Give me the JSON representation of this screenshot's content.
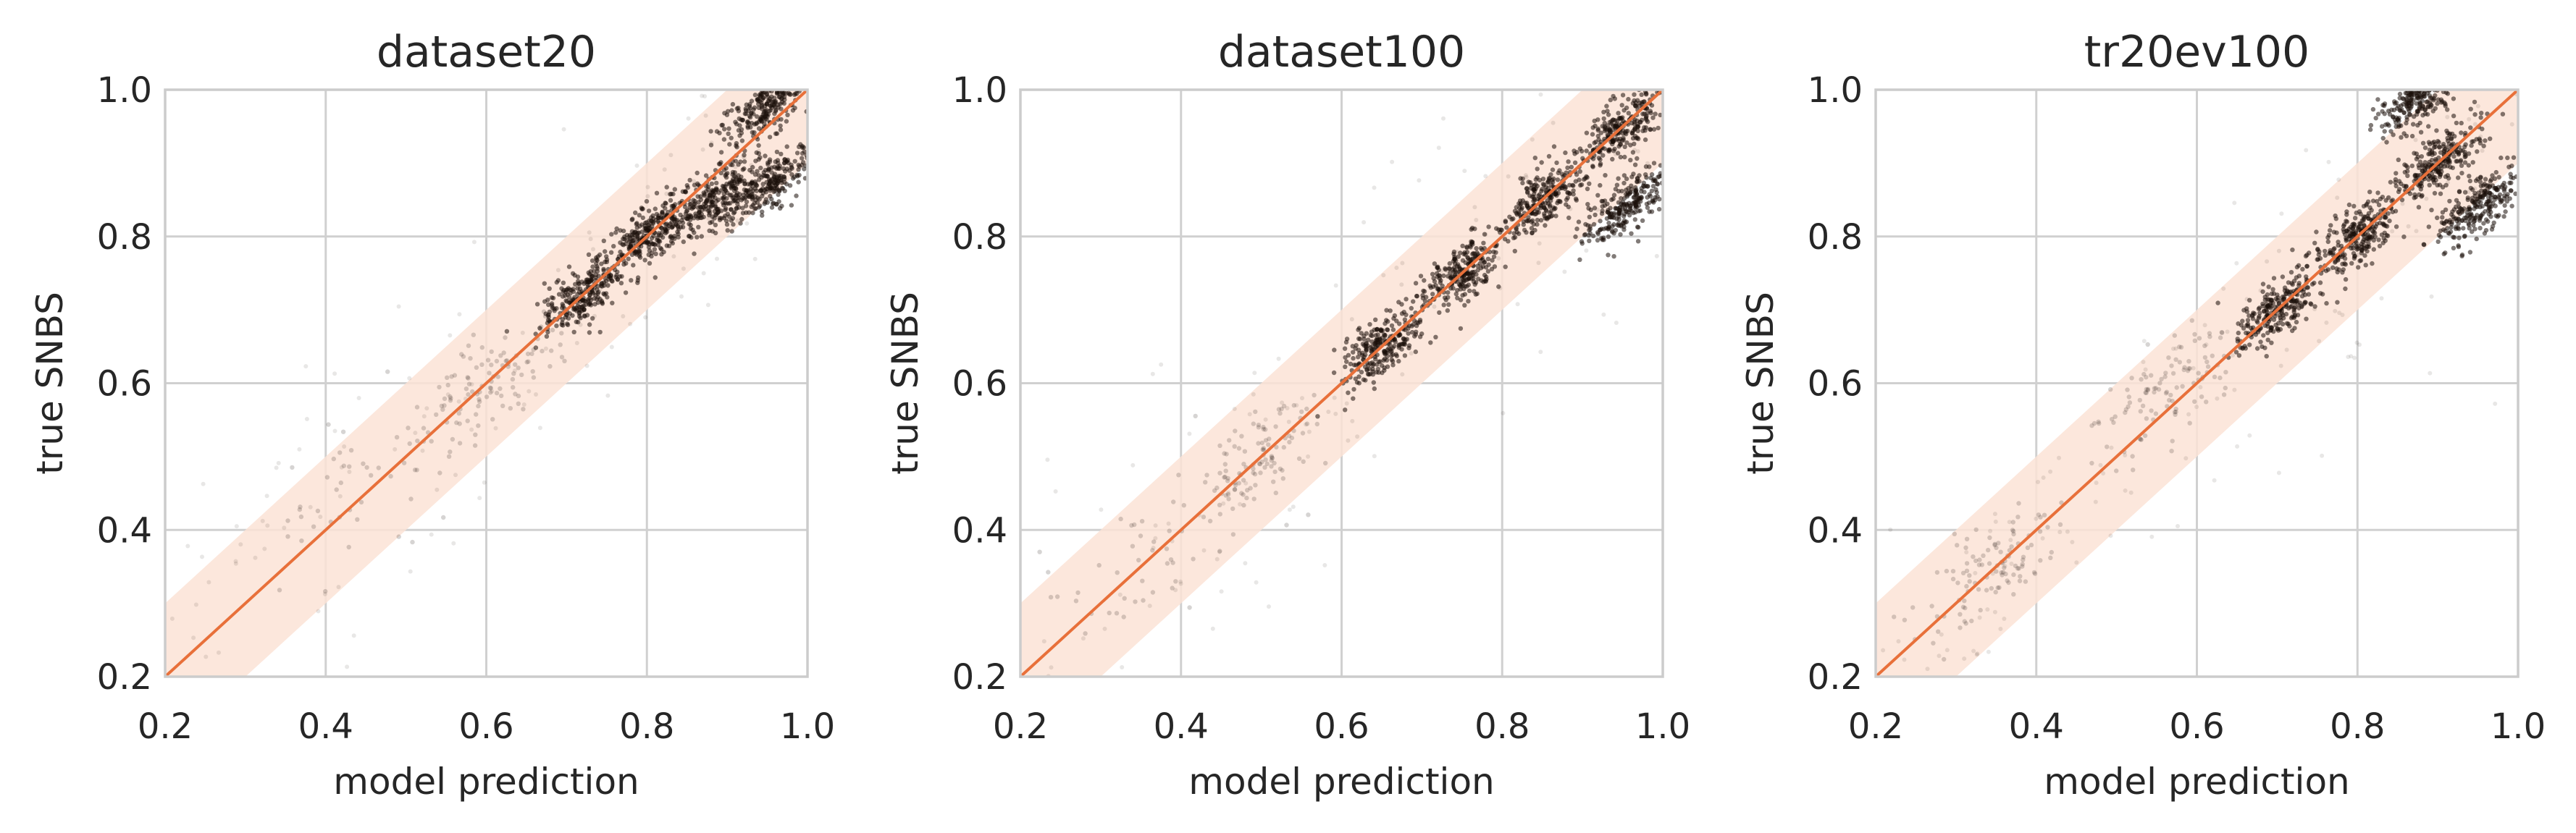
{
  "chart_data": [
    {
      "type": "scatter",
      "title": "dataset20",
      "xlabel": "model prediction",
      "ylabel": "true SNBS",
      "xlim": [
        0.2,
        1.0
      ],
      "ylim": [
        0.2,
        1.0
      ],
      "xticks": [
        "0.2",
        "0.4",
        "0.6",
        "0.8",
        "1.0"
      ],
      "yticks": [
        "0.2",
        "0.4",
        "0.6",
        "0.8",
        "1.0"
      ],
      "grid": true,
      "reference_line": {
        "x": [
          0.2,
          1.0
        ],
        "y": [
          0.2,
          1.0
        ]
      },
      "tolerance_band": 0.1,
      "point_density": [
        {
          "x": 0.72,
          "y": 0.72,
          "level": "dense"
        },
        {
          "x": 0.8,
          "y": 0.8,
          "level": "dense"
        },
        {
          "x": 0.88,
          "y": 0.85,
          "level": "dense"
        },
        {
          "x": 0.95,
          "y": 0.87,
          "level": "dense"
        },
        {
          "x": 0.95,
          "y": 0.98,
          "level": "dense"
        },
        {
          "x": 0.6,
          "y": 0.6,
          "level": "medium"
        },
        {
          "x": 0.45,
          "y": 0.45,
          "level": "sparse"
        }
      ]
    },
    {
      "type": "scatter",
      "title": "dataset100",
      "xlabel": "model prediction",
      "ylabel": "true SNBS",
      "xlim": [
        0.2,
        1.0
      ],
      "ylim": [
        0.2,
        1.0
      ],
      "xticks": [
        "0.2",
        "0.4",
        "0.6",
        "0.8",
        "1.0"
      ],
      "yticks": [
        "0.2",
        "0.4",
        "0.6",
        "0.8",
        "1.0"
      ],
      "grid": true,
      "reference_line": {
        "x": [
          0.2,
          1.0
        ],
        "y": [
          0.2,
          1.0
        ]
      },
      "tolerance_band": 0.1,
      "point_density": [
        {
          "x": 0.65,
          "y": 0.65,
          "level": "dense"
        },
        {
          "x": 0.75,
          "y": 0.75,
          "level": "dense"
        },
        {
          "x": 0.85,
          "y": 0.85,
          "level": "dense"
        },
        {
          "x": 0.95,
          "y": 0.95,
          "level": "dense"
        },
        {
          "x": 0.95,
          "y": 0.84,
          "level": "dense"
        },
        {
          "x": 0.5,
          "y": 0.5,
          "level": "medium"
        },
        {
          "x": 0.35,
          "y": 0.35,
          "level": "sparse"
        }
      ]
    },
    {
      "type": "scatter",
      "title": "tr20ev100",
      "xlabel": "model prediction",
      "ylabel": "true SNBS",
      "xlim": [
        0.2,
        1.0
      ],
      "ylim": [
        0.2,
        1.0
      ],
      "xticks": [
        "0.2",
        "0.4",
        "0.6",
        "0.8",
        "1.0"
      ],
      "yticks": [
        "0.2",
        "0.4",
        "0.6",
        "0.8",
        "1.0"
      ],
      "grid": true,
      "reference_line": {
        "x": [
          0.2,
          1.0
        ],
        "y": [
          0.2,
          1.0
        ]
      },
      "tolerance_band": 0.1,
      "point_density": [
        {
          "x": 0.7,
          "y": 0.7,
          "level": "dense"
        },
        {
          "x": 0.8,
          "y": 0.8,
          "level": "dense"
        },
        {
          "x": 0.9,
          "y": 0.9,
          "level": "dense"
        },
        {
          "x": 0.95,
          "y": 0.84,
          "level": "dense"
        },
        {
          "x": 0.88,
          "y": 0.99,
          "level": "dense"
        },
        {
          "x": 0.55,
          "y": 0.58,
          "level": "medium"
        },
        {
          "x": 0.35,
          "y": 0.35,
          "level": "medium"
        }
      ]
    }
  ],
  "colors": {
    "line": "#e8703a",
    "band": "#fbe3d6",
    "points": "#1a0f0a",
    "grid": "#d0d0d0",
    "spine": "#cccccc"
  }
}
